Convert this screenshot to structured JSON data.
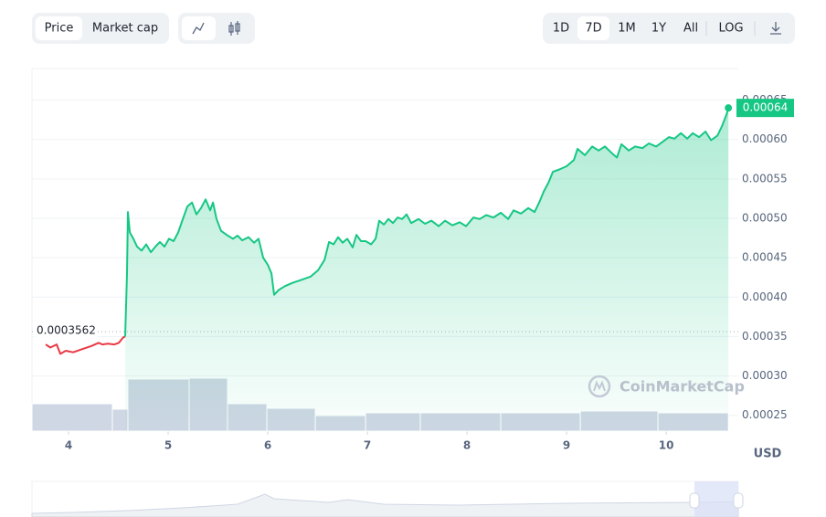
{
  "toolbar": {
    "price": "Price",
    "market_cap": "Market cap",
    "ranges": [
      "1D",
      "7D",
      "1M",
      "1Y",
      "All"
    ],
    "log": "LOG"
  },
  "chart_data": {
    "type": "line",
    "unit": "USD",
    "watermark": "CoinMarketCap",
    "xlim": [
      3.633,
      10.65
    ],
    "xticks": [
      4,
      5,
      6,
      7,
      8,
      9,
      10
    ],
    "ylim": [
      0.00023,
      0.00069
    ],
    "yticks": [
      0.00025,
      {
        "value": 0.0003,
        "label": "0.00030"
      },
      0.00035,
      {
        "value": 0.0004,
        "label": "0.00040"
      },
      0.00045,
      {
        "value": 0.0005,
        "label": "0.00050"
      },
      0.00055,
      {
        "value": 0.0006,
        "label": "0.00060"
      },
      0.00065
    ],
    "grid": true,
    "reference_price": 0.0003562,
    "current_price": 0.00064,
    "series": [
      {
        "color": "#ea3943",
        "fill": false,
        "x": [
          3.771,
          3.817,
          3.881,
          3.917,
          3.972,
          4.046,
          4.138,
          4.229,
          4.303,
          4.339,
          4.394,
          4.459,
          4.505,
          4.55,
          4.569
        ],
        "values": [
          0.00034,
          0.000336,
          0.00034,
          0.000328,
          0.000332,
          0.00033,
          0.000334,
          0.000338,
          0.000342,
          0.00034,
          0.000341,
          0.00034,
          0.000342,
          0.000349,
          0.00035
        ]
      },
      {
        "color": "#16c784",
        "fill": true,
        "x": [
          4.569,
          4.587,
          4.596,
          4.615,
          4.651,
          4.688,
          4.734,
          4.78,
          4.826,
          4.872,
          4.917,
          4.963,
          5.009,
          5.055,
          5.101,
          5.147,
          5.193,
          5.239,
          5.284,
          5.33,
          5.376,
          5.422,
          5.45,
          5.486,
          5.532,
          5.587,
          5.651,
          5.697,
          5.743,
          5.807,
          5.862,
          5.908,
          5.954,
          6.0,
          6.037,
          6.064,
          6.11,
          6.174,
          6.248,
          6.339,
          6.431,
          6.505,
          6.569,
          6.615,
          6.661,
          6.706,
          6.752,
          6.798,
          6.853,
          6.89,
          6.936,
          6.982,
          7.037,
          7.083,
          7.119,
          7.165,
          7.211,
          7.257,
          7.303,
          7.349,
          7.394,
          7.44,
          7.514,
          7.578,
          7.642,
          7.716,
          7.78,
          7.853,
          7.927,
          7.991,
          8.064,
          8.128,
          8.193,
          8.266,
          8.339,
          8.413,
          8.468,
          8.541,
          8.615,
          8.679,
          8.725,
          8.771,
          8.817,
          8.862,
          8.927,
          9.0,
          9.073,
          9.11,
          9.183,
          9.257,
          9.321,
          9.385,
          9.459,
          9.505,
          9.55,
          9.624,
          9.688,
          9.761,
          9.826,
          9.899,
          9.963,
          10.028,
          10.083,
          10.147,
          10.211,
          10.266,
          10.33,
          10.394,
          10.45,
          10.514,
          10.56,
          10.606,
          10.624
        ],
        "values": [
          0.00035,
          0.00043,
          0.000508,
          0.000482,
          0.000474,
          0.000464,
          0.000459,
          0.000467,
          0.000457,
          0.000464,
          0.00047,
          0.000464,
          0.000474,
          0.000471,
          0.000482,
          0.000499,
          0.000515,
          0.00052,
          0.000505,
          0.000513,
          0.000524,
          0.00051,
          0.00052,
          0.000499,
          0.000484,
          0.000479,
          0.000474,
          0.000478,
          0.000472,
          0.000476,
          0.000469,
          0.000474,
          0.00045,
          0.000441,
          0.00043,
          0.000403,
          0.000409,
          0.000414,
          0.000418,
          0.000422,
          0.000426,
          0.000434,
          0.000447,
          0.00047,
          0.000467,
          0.000476,
          0.000469,
          0.000474,
          0.000463,
          0.000479,
          0.000471,
          0.000471,
          0.000467,
          0.000474,
          0.000497,
          0.000492,
          0.000499,
          0.000494,
          0.000501,
          0.000499,
          0.000505,
          0.000494,
          0.000499,
          0.000493,
          0.000497,
          0.00049,
          0.000497,
          0.000491,
          0.000495,
          0.00049,
          0.000501,
          0.000499,
          0.000504,
          0.000501,
          0.000507,
          0.000499,
          0.00051,
          0.000506,
          0.000513,
          0.000508,
          0.00052,
          0.000534,
          0.000545,
          0.000559,
          0.000562,
          0.000566,
          0.000574,
          0.000588,
          0.00058,
          0.000591,
          0.000586,
          0.000591,
          0.000582,
          0.000577,
          0.000594,
          0.000586,
          0.000591,
          0.000589,
          0.000595,
          0.000591,
          0.000597,
          0.000603,
          0.000601,
          0.000608,
          0.000601,
          0.000608,
          0.000603,
          0.00061,
          0.000599,
          0.000605,
          0.000617,
          0.000632,
          0.00064
        ]
      }
    ],
    "volume_bins": [
      3.633,
      4.44,
      4.596,
      5.211,
      5.596,
      5.991,
      6.477,
      6.982,
      7.532,
      8.339,
      9.138,
      9.917,
      10.624
    ],
    "volume": [
      30,
      24,
      57,
      58,
      30,
      25,
      17,
      20,
      20,
      20,
      22,
      20
    ],
    "volume_lim": [
      0,
      100
    ],
    "volume_color": "#cfd6e4"
  }
}
